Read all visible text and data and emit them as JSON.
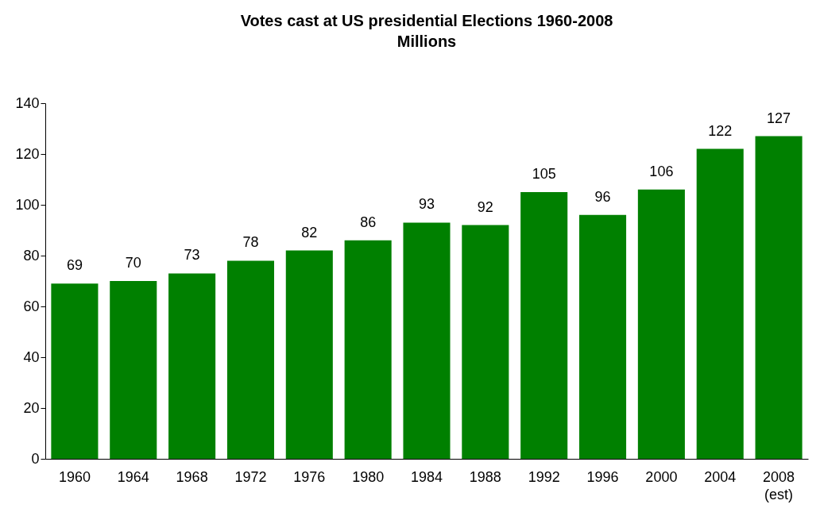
{
  "chart_data": {
    "type": "bar",
    "title": "Votes cast at US presidential Elections 1960-2008",
    "subtitle": "Millions",
    "categories": [
      "1960",
      "1964",
      "1968",
      "1972",
      "1976",
      "1980",
      "1984",
      "1988",
      "1992",
      "1996",
      "2000",
      "2004",
      "2008\n(est)"
    ],
    "values": [
      69,
      70,
      73,
      78,
      82,
      86,
      93,
      92,
      105,
      96,
      106,
      122,
      127
    ],
    "color": "#008000",
    "ylim": [
      0,
      140
    ],
    "yticks": [
      0,
      20,
      40,
      60,
      80,
      100,
      120,
      140
    ],
    "data_labels": true,
    "grid": false
  }
}
